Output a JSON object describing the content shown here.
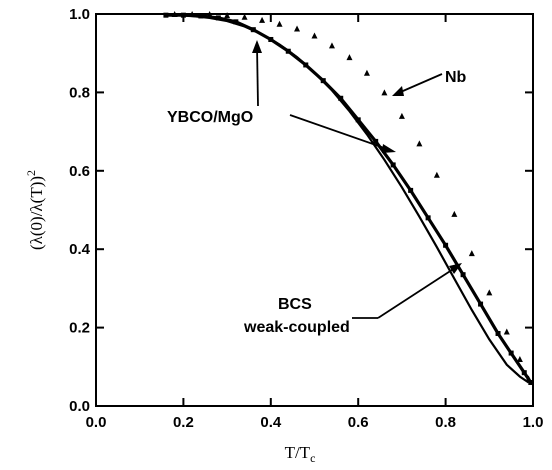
{
  "chart_data": {
    "type": "scatter",
    "xlabel": "T/T",
    "xlabel_sub": "c",
    "ylabel": "(λ(0)/λ(T))",
    "ylabel_sup": "2",
    "xlim": [
      0.0,
      1.0
    ],
    "ylim": [
      0.0,
      1.0
    ],
    "x_ticks": [
      "0.0",
      "0.2",
      "0.4",
      "0.6",
      "0.8",
      "1.0"
    ],
    "y_ticks": [
      "0.0",
      "0.2",
      "0.4",
      "0.6",
      "0.8",
      "1.0"
    ],
    "grid": false,
    "series": [
      {
        "marker": "triangle",
        "color": "#000000",
        "x": [
          0.18,
          0.22,
          0.26,
          0.3,
          0.34,
          0.38,
          0.42,
          0.46,
          0.5,
          0.54,
          0.58,
          0.62,
          0.66,
          0.7,
          0.74,
          0.78,
          0.82,
          0.86,
          0.9,
          0.94,
          0.97,
          0.99
        ],
        "y": [
          1.0,
          1.0,
          1.0,
          0.997,
          0.993,
          0.985,
          0.975,
          0.963,
          0.945,
          0.92,
          0.89,
          0.85,
          0.8,
          0.74,
          0.67,
          0.59,
          0.49,
          0.39,
          0.29,
          0.19,
          0.12,
          0.07
        ]
      },
      {
        "marker": "square",
        "color": "#000000",
        "x": [
          0.16,
          0.2,
          0.24,
          0.28,
          0.32,
          0.36,
          0.4,
          0.44,
          0.48,
          0.52,
          0.56,
          0.6,
          0.64,
          0.68,
          0.72,
          0.76,
          0.8,
          0.84,
          0.88,
          0.92,
          0.95,
          0.98,
          0.995
        ],
        "y": [
          0.997,
          0.997,
          0.995,
          0.99,
          0.98,
          0.96,
          0.935,
          0.905,
          0.87,
          0.83,
          0.785,
          0.73,
          0.675,
          0.615,
          0.55,
          0.48,
          0.41,
          0.335,
          0.26,
          0.185,
          0.135,
          0.085,
          0.06
        ]
      },
      {
        "marker": "line",
        "color": "#000000",
        "x": [
          0.18,
          0.22,
          0.26,
          0.3,
          0.34,
          0.38,
          0.42,
          0.46,
          0.5,
          0.54,
          0.58,
          0.62,
          0.66,
          0.7,
          0.74,
          0.78,
          0.82,
          0.86,
          0.9,
          0.94,
          0.97,
          0.99
        ],
        "y": [
          0.998,
          0.995,
          0.99,
          0.982,
          0.968,
          0.948,
          0.922,
          0.89,
          0.85,
          0.805,
          0.752,
          0.693,
          0.628,
          0.558,
          0.483,
          0.405,
          0.325,
          0.245,
          0.17,
          0.105,
          0.075,
          0.06
        ]
      }
    ],
    "annotations": [
      {
        "text": "Nb"
      },
      {
        "text": "YBCO/MgO"
      },
      {
        "text": "BCS"
      },
      {
        "text": "weak-coupled"
      }
    ]
  }
}
